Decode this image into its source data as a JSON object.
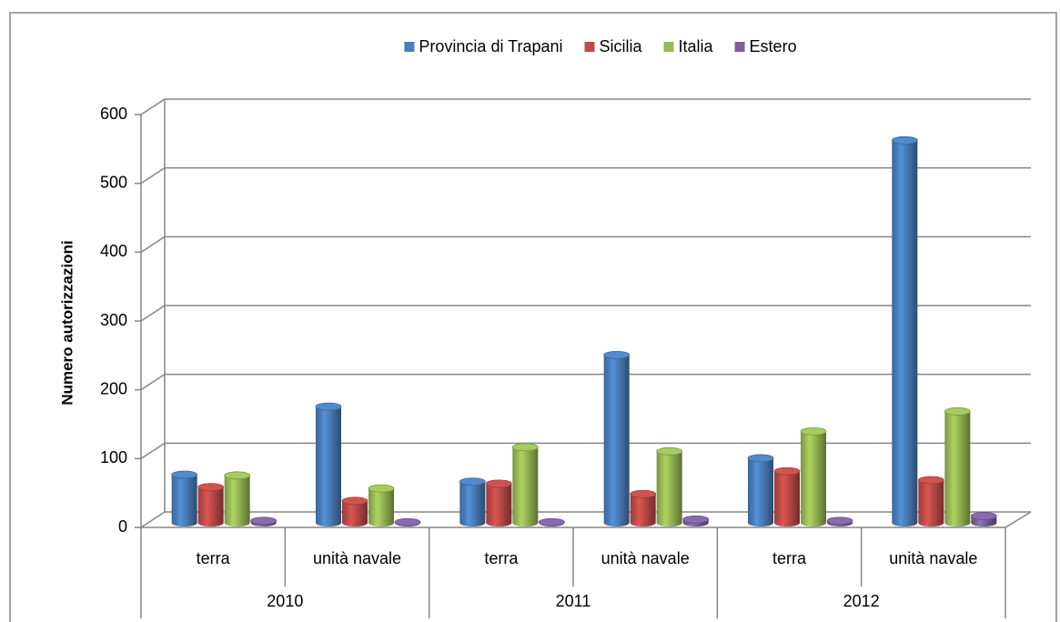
{
  "chart_data": {
    "type": "bar3d",
    "y_axis_label": "Numero autorizzazioni",
    "groups": [
      "2010",
      "2011",
      "2012"
    ],
    "categories": [
      "terra",
      "unità navale",
      "terra",
      "unità navale",
      "terra",
      "unità navale"
    ],
    "series": [
      {
        "name": "Provincia di Trapani",
        "color": "#4a7ebb",
        "values": [
          70,
          169,
          60,
          244,
          94,
          556
        ]
      },
      {
        "name": "Sicilia",
        "color": "#be4b48",
        "values": [
          52,
          32,
          57,
          42,
          75,
          62
        ]
      },
      {
        "name": "Italia",
        "color": "#98b954",
        "values": [
          69,
          50,
          110,
          104,
          133,
          162
        ]
      },
      {
        "name": "Estero",
        "color": "#7d60a0",
        "values": [
          3,
          1,
          1,
          5,
          3,
          10
        ]
      }
    ],
    "ylim": [
      0,
      600
    ],
    "yticks": [
      0,
      100,
      200,
      300,
      400,
      500,
      600
    ],
    "grid": true,
    "legend": "top"
  }
}
